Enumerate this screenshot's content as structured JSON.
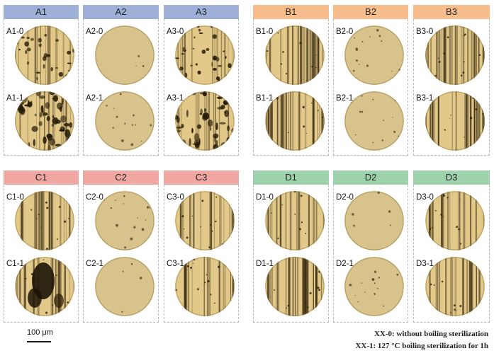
{
  "colors": {
    "group_A": "#9fb0d8",
    "group_B": "#f7bd8c",
    "group_C": "#f0a6a1",
    "group_D": "#9dd2ad",
    "disk_base": "#e2c98a",
    "disk_smooth": "#d8c38c"
  },
  "panels": [
    {
      "id": "A1",
      "label": "A1",
      "group": "A",
      "samples": [
        {
          "label": "A1-0",
          "texture": "mottled"
        },
        {
          "label": "A1-1",
          "texture": "pitted-heavy"
        }
      ]
    },
    {
      "id": "A2",
      "label": "A2",
      "group": "A",
      "samples": [
        {
          "label": "A2-0",
          "texture": "smooth"
        },
        {
          "label": "A2-1",
          "texture": "smooth-dots"
        }
      ]
    },
    {
      "id": "A3",
      "label": "A3",
      "group": "A",
      "samples": [
        {
          "label": "A3-0",
          "texture": "mottled"
        },
        {
          "label": "A3-1",
          "texture": "pitted-heavy"
        }
      ]
    },
    {
      "id": "B1",
      "label": "B1",
      "group": "B",
      "samples": [
        {
          "label": "B1-0",
          "texture": "striated-dark"
        },
        {
          "label": "B1-1",
          "texture": "striated-dark"
        }
      ]
    },
    {
      "id": "B2",
      "label": "B2",
      "group": "B",
      "samples": [
        {
          "label": "B2-0",
          "texture": "smooth-dots"
        },
        {
          "label": "B2-1",
          "texture": "smooth-dots"
        }
      ]
    },
    {
      "id": "B3",
      "label": "B3",
      "group": "B",
      "samples": [
        {
          "label": "B3-0",
          "texture": "striated-dark"
        },
        {
          "label": "B3-1",
          "texture": "striated-dark"
        }
      ]
    },
    {
      "id": "C1",
      "label": "C1",
      "group": "C",
      "samples": [
        {
          "label": "C1-0",
          "texture": "striated"
        },
        {
          "label": "C1-1",
          "texture": "corroded"
        }
      ]
    },
    {
      "id": "C2",
      "label": "C2",
      "group": "C",
      "samples": [
        {
          "label": "C2-0",
          "texture": "smooth-dots"
        },
        {
          "label": "C2-1",
          "texture": "smooth"
        }
      ]
    },
    {
      "id": "C3",
      "label": "C3",
      "group": "C",
      "samples": [
        {
          "label": "C3-0",
          "texture": "striated"
        },
        {
          "label": "C3-1",
          "texture": "striated"
        }
      ]
    },
    {
      "id": "D1",
      "label": "D1",
      "group": "D",
      "samples": [
        {
          "label": "D1-0",
          "texture": "striated"
        },
        {
          "label": "D1-1",
          "texture": "striated-dark"
        }
      ]
    },
    {
      "id": "D2",
      "label": "D2",
      "group": "D",
      "samples": [
        {
          "label": "D2-0",
          "texture": "smooth"
        },
        {
          "label": "D2-1",
          "texture": "smooth-dots"
        }
      ]
    },
    {
      "id": "D3",
      "label": "D3",
      "group": "D",
      "samples": [
        {
          "label": "D3-0",
          "texture": "striated"
        },
        {
          "label": "D3-1",
          "texture": "striated"
        }
      ]
    }
  ],
  "scale_bar": {
    "label": "100 μm"
  },
  "legend": {
    "line1": "XX-0:  without boiling sterilization",
    "line2": "XX-1:   127 °C boiling sterilization  for 1h"
  }
}
